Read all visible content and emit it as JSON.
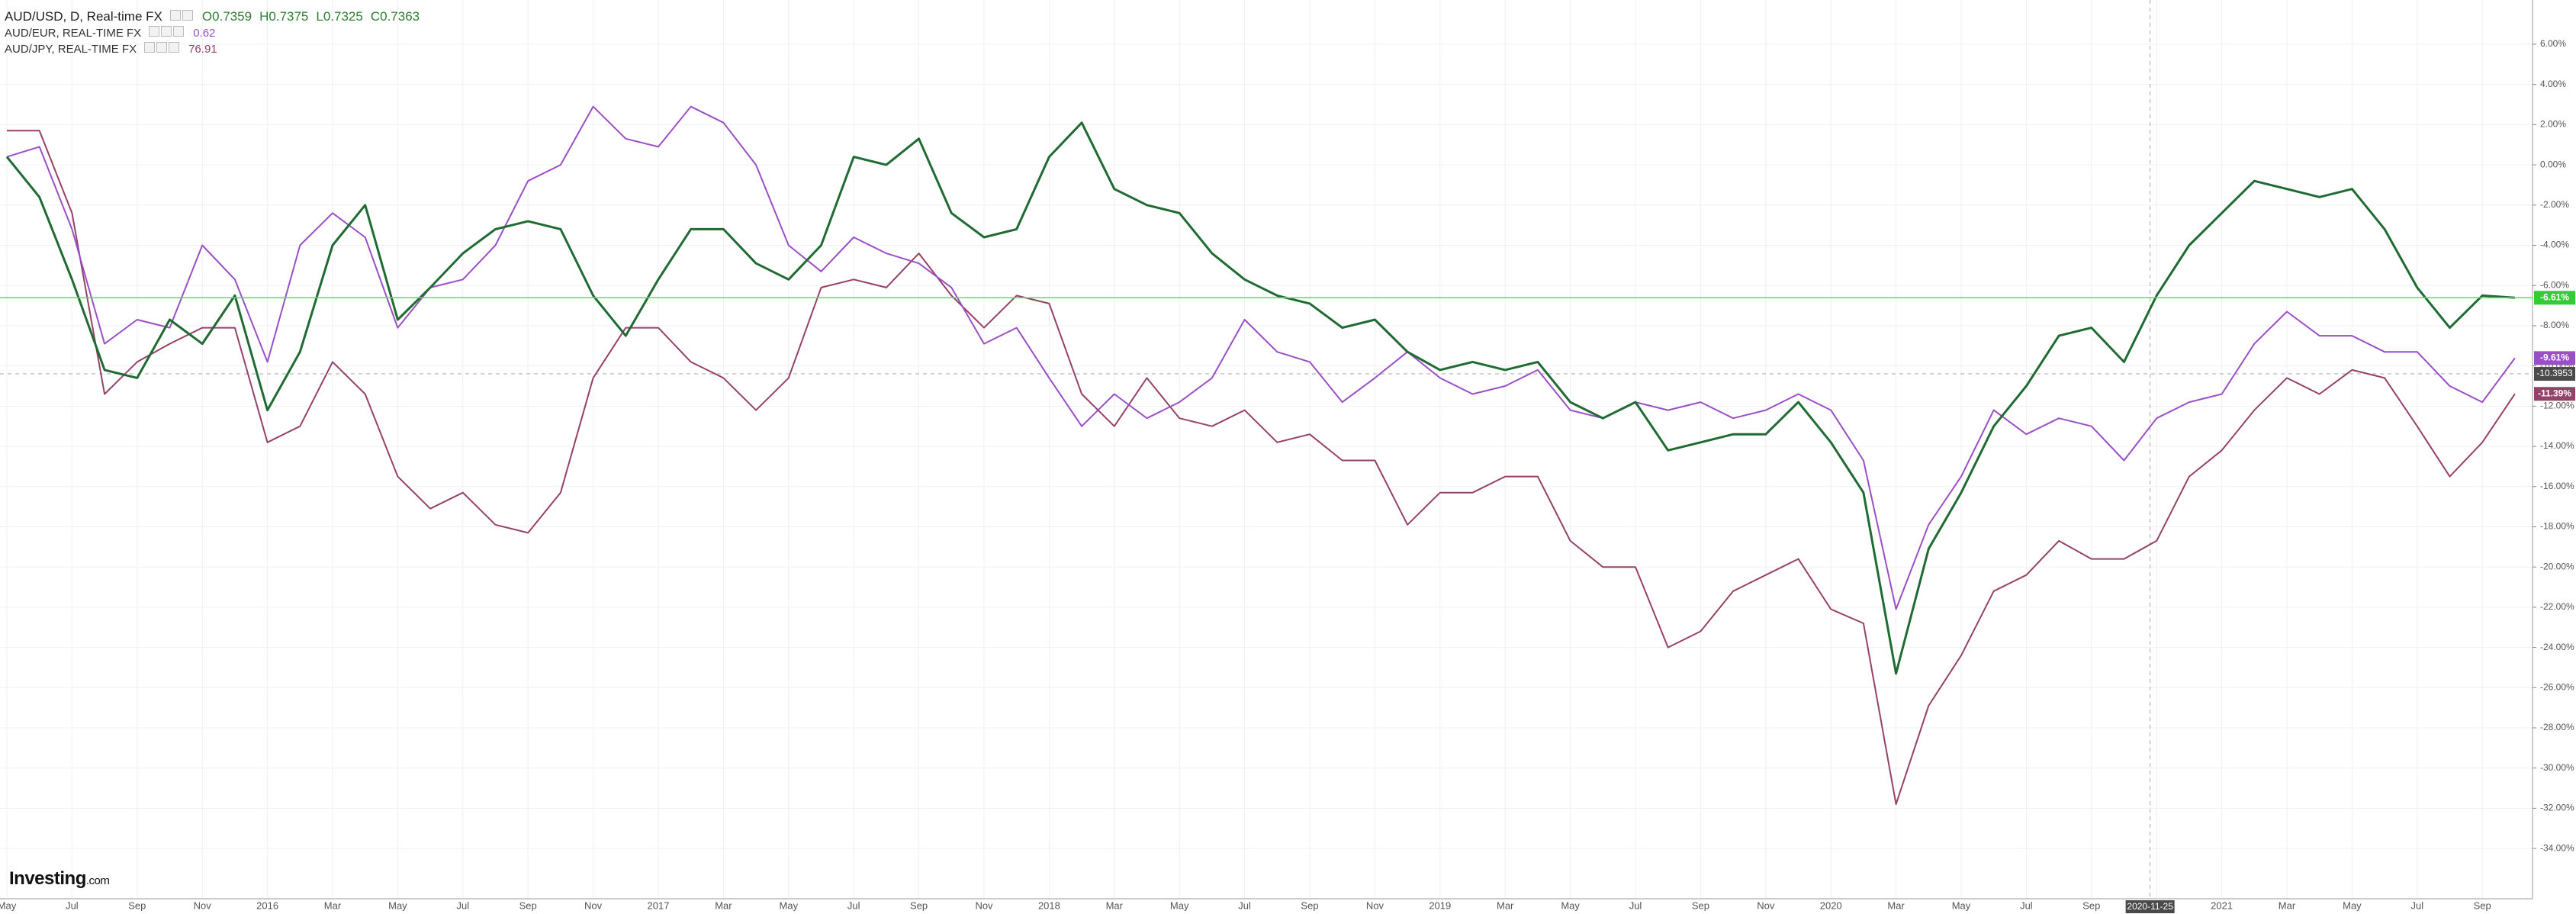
{
  "chart_data": {
    "type": "line",
    "title": "AUD/USD, D, Real-time FX",
    "ohlc": [
      "O0.7359",
      "H0.7375",
      "L0.7325",
      "C0.7363"
    ],
    "categories": [
      "May",
      null,
      "Jul",
      null,
      "Sep",
      null,
      "Nov",
      null,
      "2016",
      null,
      "Mar",
      null,
      "May",
      null,
      "Jul",
      null,
      "Sep",
      null,
      "Nov",
      null,
      "2017",
      null,
      "Mar",
      null,
      "May",
      null,
      "Jul",
      null,
      "Sep",
      null,
      "Nov",
      null,
      "2018",
      null,
      "Mar",
      null,
      "May",
      null,
      "Jul",
      null,
      "Sep",
      null,
      "Nov",
      null,
      "2019",
      null,
      "Mar",
      null,
      "May",
      null,
      "Jul",
      null,
      "Sep",
      null,
      "Nov",
      null,
      "2020",
      null,
      "Mar",
      null,
      "May",
      null,
      "Jul",
      null,
      "Sep",
      null,
      "Nov",
      null,
      "2021",
      null,
      "Mar",
      null,
      "May",
      null,
      "Jul",
      null,
      "Sep",
      null
    ],
    "series": [
      {
        "name": "AUD/USD",
        "color": "#1f6b33",
        "last_label": "-6.61%",
        "values": [
          0.4,
          -1.6,
          -5.7,
          -10.2,
          -10.6,
          -7.7,
          -8.9,
          -6.5,
          -12.2,
          -9.3,
          -4.0,
          -2.0,
          -7.7,
          -6.1,
          -4.4,
          -3.2,
          -2.8,
          -3.2,
          -6.5,
          -8.5,
          -5.7,
          -3.2,
          -3.2,
          -4.9,
          -5.7,
          -4.0,
          0.4,
          0.0,
          1.3,
          -2.4,
          -3.6,
          -3.2,
          0.4,
          2.1,
          -1.2,
          -2.0,
          -2.4,
          -4.4,
          -5.7,
          -6.5,
          -6.9,
          -8.1,
          -7.7,
          -9.3,
          -10.2,
          -9.8,
          -10.2,
          -9.8,
          -11.8,
          -12.6,
          -11.8,
          -14.2,
          -13.8,
          -13.4,
          -13.4,
          -11.8,
          -13.8,
          -16.3,
          -25.3,
          -19.1,
          -16.3,
          -13.0,
          -11.0,
          -8.5,
          -8.1,
          -9.8,
          -6.5,
          -4.0,
          -2.4,
          -0.8,
          -1.2,
          -1.6,
          -1.2,
          -3.2,
          -6.1,
          -8.1,
          -6.5,
          -6.61
        ]
      },
      {
        "name": "AUD/EUR, REAL-TIME FX",
        "color": "#9b4fc6",
        "last_price": "0.62",
        "last_label": "-9.61%",
        "values": [
          0.4,
          0.9,
          -3.2,
          -8.9,
          -7.7,
          -8.1,
          -4.0,
          -5.7,
          -9.8,
          -4.0,
          -2.4,
          -3.6,
          -8.1,
          -6.1,
          -5.7,
          -4.0,
          -0.8,
          0.0,
          2.9,
          1.3,
          0.9,
          2.9,
          2.1,
          0.0,
          -4.0,
          -5.3,
          -3.6,
          -4.4,
          -4.9,
          -6.1,
          -8.9,
          -8.1,
          -10.6,
          -13.0,
          -11.4,
          -12.6,
          -11.8,
          -10.6,
          -7.7,
          -9.3,
          -9.8,
          -11.8,
          -10.6,
          -9.3,
          -10.6,
          -11.4,
          -11.0,
          -10.2,
          -12.2,
          -12.6,
          -11.8,
          -12.2,
          -11.8,
          -12.6,
          -12.2,
          -11.4,
          -12.2,
          -14.7,
          -22.1,
          -17.9,
          -15.5,
          -12.2,
          -13.4,
          -12.6,
          -13.0,
          -14.7,
          -12.6,
          -11.8,
          -11.4,
          -8.9,
          -7.3,
          -8.5,
          -8.5,
          -9.3,
          -9.3,
          -11.0,
          -11.8,
          -9.61
        ]
      },
      {
        "name": "AUD/JPY, REAL-TIME FX",
        "color": "#95416a",
        "last_price": "76.91",
        "last_label": "-11.39%",
        "values": [
          1.7,
          1.7,
          -2.4,
          -11.4,
          -9.8,
          -8.9,
          -8.1,
          -8.1,
          -13.8,
          -13.0,
          -9.8,
          -11.4,
          -15.5,
          -17.1,
          -16.3,
          -17.9,
          -18.3,
          -16.3,
          -10.6,
          -8.1,
          -8.1,
          -9.8,
          -10.6,
          -12.2,
          -10.6,
          -6.1,
          -5.7,
          -6.1,
          -4.4,
          -6.5,
          -8.1,
          -6.5,
          -6.9,
          -11.4,
          -13.0,
          -10.6,
          -12.6,
          -13.0,
          -12.2,
          -13.8,
          -13.4,
          -14.7,
          -14.7,
          -17.9,
          -16.3,
          -16.3,
          -15.5,
          -15.5,
          -18.7,
          -20.0,
          -20.0,
          -24.0,
          -23.2,
          -21.2,
          -20.4,
          -19.6,
          -22.1,
          -22.8,
          -31.8,
          -26.9,
          -24.4,
          -21.2,
          -20.4,
          -18.7,
          -19.6,
          -19.6,
          -18.7,
          -15.5,
          -14.2,
          -12.2,
          -10.6,
          -11.4,
          -10.2,
          -10.6,
          -13.0,
          -15.5,
          -13.8,
          -11.39
        ]
      }
    ],
    "ylim": [
      -36.5,
      8.2
    ],
    "yticks": [
      {
        "value": 6,
        "label": "6.00%"
      },
      {
        "value": 4,
        "label": "4.00%"
      },
      {
        "value": 2,
        "label": "2.00%"
      },
      {
        "value": 0,
        "label": "0.00%"
      },
      {
        "value": -2,
        "label": "-2.00%"
      },
      {
        "value": -4,
        "label": "-4.00%"
      },
      {
        "value": -6,
        "label": "-6.00%"
      },
      {
        "value": -8,
        "label": "-8.00%"
      },
      {
        "value": -10,
        "label": "-10.00%"
      },
      {
        "value": -12,
        "label": "-12.00%"
      },
      {
        "value": -14,
        "label": "-14.00%"
      },
      {
        "value": -16,
        "label": "-16.00%"
      },
      {
        "value": -18,
        "label": "-18.00%"
      },
      {
        "value": -20,
        "label": "-20.00%"
      },
      {
        "value": -22,
        "label": "-22.00%"
      },
      {
        "value": -24,
        "label": "-24.00%"
      },
      {
        "value": -26,
        "label": "-26.00%"
      },
      {
        "value": -28,
        "label": "-28.00%"
      },
      {
        "value": -30,
        "label": "-30.00%"
      },
      {
        "value": -32,
        "label": "-32.00%"
      },
      {
        "value": -34,
        "label": "-34.00%"
      }
    ],
    "grid": true,
    "crosshair": {
      "date": "2020-11-25",
      "value": -10.3953,
      "value_label": "-10.3953"
    },
    "logo": [
      "Investing",
      ".com"
    ]
  }
}
